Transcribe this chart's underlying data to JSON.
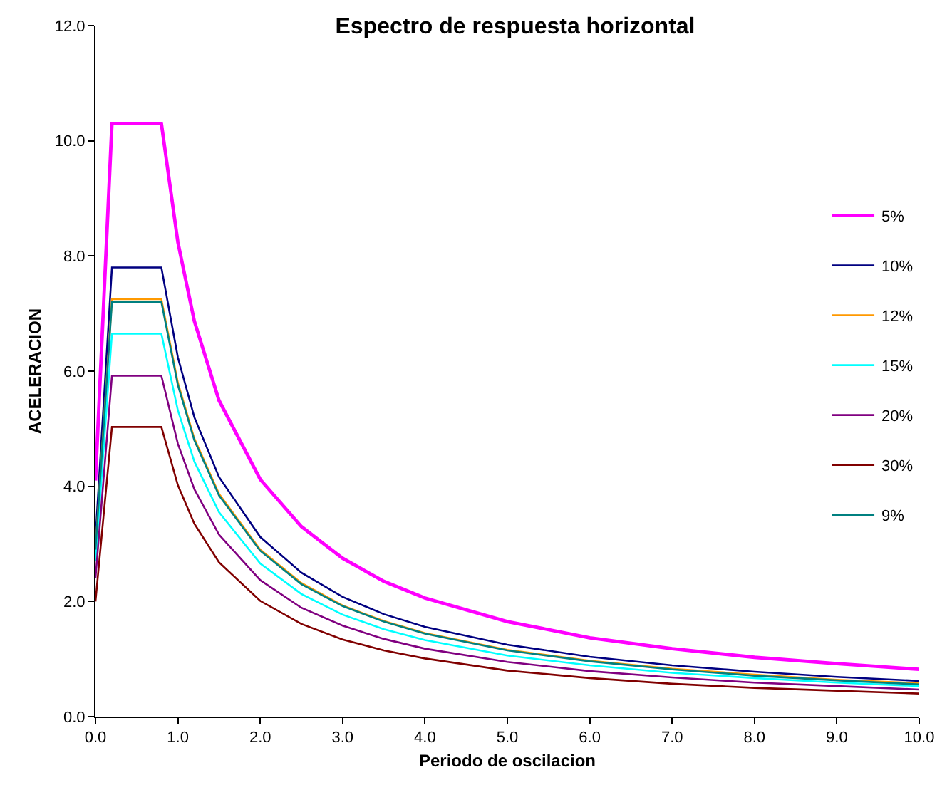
{
  "chart_data": {
    "type": "line",
    "title": "Espectro de respuesta horizontal",
    "xlabel": "Periodo de oscilacion",
    "ylabel": "ACELERACION",
    "x": [
      0,
      0.2,
      0.8,
      1.0,
      1.2,
      1.5,
      2,
      2.5,
      3,
      3.5,
      4,
      5,
      6,
      7,
      8,
      9,
      10
    ],
    "series": [
      {
        "name": "5%",
        "color": "#ff00ff",
        "values": [
          4.1,
          10.3,
          10.3,
          8.24,
          6.87,
          5.49,
          4.12,
          3.3,
          2.75,
          2.35,
          2.06,
          1.65,
          1.37,
          1.18,
          1.03,
          0.92,
          0.82
        ]
      },
      {
        "name": "10%",
        "color": "#000080",
        "values": [
          3.1,
          7.8,
          7.8,
          6.24,
          5.2,
          4.16,
          3.12,
          2.5,
          2.08,
          1.78,
          1.56,
          1.25,
          1.04,
          0.89,
          0.78,
          0.69,
          0.62
        ]
      },
      {
        "name": "12%",
        "color": "#ff9900",
        "values": [
          2.9,
          7.25,
          7.25,
          5.8,
          4.83,
          3.87,
          2.9,
          2.32,
          1.93,
          1.66,
          1.45,
          1.16,
          0.97,
          0.83,
          0.73,
          0.64,
          0.58
        ]
      },
      {
        "name": "15%",
        "color": "#00ffff",
        "values": [
          2.7,
          6.65,
          6.65,
          5.32,
          4.43,
          3.55,
          2.66,
          2.13,
          1.77,
          1.52,
          1.33,
          1.06,
          0.89,
          0.76,
          0.67,
          0.59,
          0.53
        ]
      },
      {
        "name": "20%",
        "color": "#800080",
        "values": [
          2.4,
          5.92,
          5.92,
          4.74,
          3.95,
          3.16,
          2.37,
          1.89,
          1.58,
          1.35,
          1.18,
          0.95,
          0.79,
          0.68,
          0.59,
          0.53,
          0.47
        ]
      },
      {
        "name": "30%",
        "color": "#800000",
        "values": [
          2.0,
          5.03,
          5.03,
          4.02,
          3.35,
          2.68,
          2.01,
          1.61,
          1.34,
          1.15,
          1.01,
          0.8,
          0.67,
          0.57,
          0.5,
          0.45,
          0.4
        ]
      },
      {
        "name": "9%",
        "color": "#008080",
        "values": [
          2.9,
          7.2,
          7.2,
          5.76,
          4.8,
          3.84,
          2.88,
          2.3,
          1.92,
          1.65,
          1.44,
          1.15,
          0.96,
          0.82,
          0.71,
          0.63,
          0.56
        ]
      }
    ],
    "xlim": [
      0,
      10
    ],
    "ylim": [
      0,
      12
    ],
    "xticks": [
      {
        "value": 0,
        "label": "0.0"
      },
      {
        "value": 1,
        "label": "1.0"
      },
      {
        "value": 2,
        "label": "2.0"
      },
      {
        "value": 3,
        "label": "3.0"
      },
      {
        "value": 4,
        "label": "4.0"
      },
      {
        "value": 5,
        "label": "5.0"
      },
      {
        "value": 6,
        "label": "6.0"
      },
      {
        "value": 7,
        "label": "7.0"
      },
      {
        "value": 8,
        "label": "8.0"
      },
      {
        "value": 9,
        "label": "9.0"
      },
      {
        "value": 10,
        "label": "10.0"
      }
    ],
    "yticks": [
      {
        "value": 0,
        "label": "0.0"
      },
      {
        "value": 2,
        "label": "2.0"
      },
      {
        "value": 4,
        "label": "4.0"
      },
      {
        "value": 6,
        "label": "6.0"
      },
      {
        "value": 8,
        "label": "8.0"
      },
      {
        "value": 10,
        "label": "10.0"
      },
      {
        "value": 12,
        "label": "12.0"
      }
    ],
    "legend": "right",
    "marker": "none",
    "line_style": "solid"
  }
}
